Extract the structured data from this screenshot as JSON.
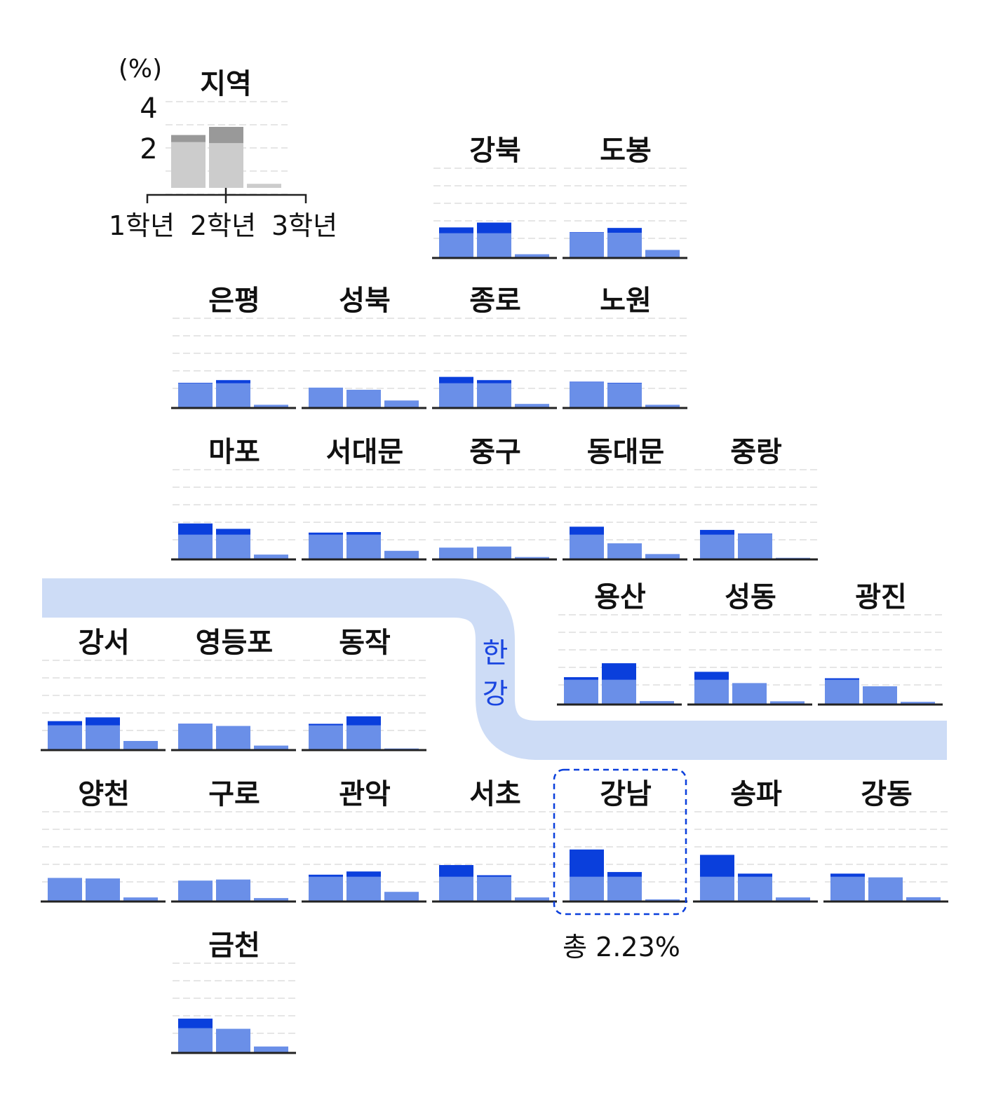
{
  "legend": {
    "unit_label": "(%)",
    "region_label": "지역",
    "ticks": [
      {
        "value": 4,
        "label": "4"
      },
      {
        "value": 2,
        "label": "2"
      }
    ],
    "grades": [
      "1학년",
      "2학년",
      "3학년"
    ],
    "sample_bars": [
      {
        "base": 2.25,
        "total": 2.6
      },
      {
        "base": 2.2,
        "total": 3.0
      },
      {
        "base": 0.2,
        "total": 0.2
      }
    ],
    "colors": {
      "base": "#cccccc",
      "top": "#999999"
    }
  },
  "river": {
    "label_chars": [
      "한",
      "강"
    ],
    "color": "#cddcf6",
    "text_color": "#1a46e0"
  },
  "highlight": {
    "district": "강남",
    "annotation": "총 2.23%"
  },
  "colors": {
    "base": "#6a8fe8",
    "top": "#0a3fdc",
    "axis": "#222222",
    "grid": "#e6e6e6",
    "text": "#111111"
  },
  "chart_data": {
    "type": "bar",
    "stacked": true,
    "categories": [
      "1학년",
      "2학년",
      "3학년"
    ],
    "ylabel": "(%)",
    "ylim": [
      0,
      5
    ],
    "yticks": [
      2,
      4
    ],
    "grid": true,
    "districts": [
      {
        "name": "강북",
        "col": 3,
        "row": 0,
        "values": [
          [
            2.3,
            2.85
          ],
          [
            2.3,
            3.3
          ],
          [
            0.35,
            0.35
          ]
        ]
      },
      {
        "name": "도봉",
        "col": 4,
        "row": 0,
        "values": [
          [
            2.35,
            2.4
          ],
          [
            2.35,
            2.8
          ],
          [
            0.75,
            0.75
          ]
        ]
      },
      {
        "name": "은평",
        "col": 1,
        "row": 1,
        "values": [
          [
            2.3,
            2.35
          ],
          [
            2.3,
            2.6
          ],
          [
            0.3,
            0.3
          ]
        ]
      },
      {
        "name": "성북",
        "col": 2,
        "row": 1,
        "values": [
          [
            1.9,
            1.9
          ],
          [
            1.7,
            1.7
          ],
          [
            0.7,
            0.7
          ]
        ]
      },
      {
        "name": "종로",
        "col": 3,
        "row": 1,
        "values": [
          [
            2.3,
            2.9
          ],
          [
            2.3,
            2.6
          ],
          [
            0.38,
            0.38
          ]
        ]
      },
      {
        "name": "노원",
        "col": 4,
        "row": 1,
        "values": [
          [
            2.4,
            2.45
          ],
          [
            2.3,
            2.35
          ],
          [
            0.3,
            0.3
          ]
        ]
      },
      {
        "name": "마포",
        "col": 1,
        "row": 2,
        "values": [
          [
            2.3,
            3.35
          ],
          [
            2.3,
            2.85
          ],
          [
            0.45,
            0.45
          ]
        ]
      },
      {
        "name": "서대문",
        "col": 2,
        "row": 2,
        "values": [
          [
            2.3,
            2.5
          ],
          [
            2.3,
            2.55
          ],
          [
            0.8,
            0.8
          ]
        ]
      },
      {
        "name": "중구",
        "col": 3,
        "row": 2,
        "values": [
          [
            1.1,
            1.1
          ],
          [
            1.2,
            1.2
          ],
          [
            0.22,
            0.22
          ]
        ]
      },
      {
        "name": "동대문",
        "col": 4,
        "row": 2,
        "values": [
          [
            2.3,
            3.05
          ],
          [
            1.5,
            1.5
          ],
          [
            0.5,
            0.5
          ]
        ]
      },
      {
        "name": "중랑",
        "col": 5,
        "row": 2,
        "values": [
          [
            2.3,
            2.75
          ],
          [
            2.35,
            2.4
          ],
          [
            0.15,
            0.15
          ]
        ]
      },
      {
        "name": "용산",
        "col": 4,
        "row": 3,
        "dx": -8,
        "values": [
          [
            2.3,
            2.55
          ],
          [
            2.3,
            3.85
          ],
          [
            0.32,
            0.32
          ]
        ]
      },
      {
        "name": "성동",
        "col": 5,
        "row": 3,
        "dx": -8,
        "values": [
          [
            2.3,
            3.05
          ],
          [
            2.0,
            2.0
          ],
          [
            0.3,
            0.3
          ]
        ]
      },
      {
        "name": "광진",
        "col": 6,
        "row": 3,
        "dx": -8,
        "values": [
          [
            2.3,
            2.45
          ],
          [
            1.7,
            1.7
          ],
          [
            0.25,
            0.25
          ]
        ]
      },
      {
        "name": "강서",
        "col": 0,
        "row": 4,
        "values": [
          [
            2.3,
            2.7
          ],
          [
            2.3,
            3.05
          ],
          [
            0.85,
            0.85
          ]
        ]
      },
      {
        "name": "영등포",
        "col": 1,
        "row": 4,
        "values": [
          [
            2.4,
            2.45
          ],
          [
            2.25,
            2.25
          ],
          [
            0.42,
            0.42
          ]
        ]
      },
      {
        "name": "동작",
        "col": 2,
        "row": 4,
        "values": [
          [
            2.3,
            2.45
          ],
          [
            2.3,
            3.15
          ],
          [
            0.15,
            0.15
          ]
        ]
      },
      {
        "name": "양천",
        "col": 0,
        "row": 5,
        "values": [
          [
            2.2,
            2.2
          ],
          [
            2.15,
            2.15
          ],
          [
            0.38,
            0.38
          ]
        ]
      },
      {
        "name": "구로",
        "col": 1,
        "row": 5,
        "values": [
          [
            1.95,
            1.95
          ],
          [
            2.05,
            2.05
          ],
          [
            0.32,
            0.32
          ]
        ]
      },
      {
        "name": "관악",
        "col": 2,
        "row": 5,
        "values": [
          [
            2.3,
            2.5
          ],
          [
            2.3,
            2.8
          ],
          [
            0.9,
            0.9
          ]
        ]
      },
      {
        "name": "서초",
        "col": 3,
        "row": 5,
        "values": [
          [
            2.3,
            3.4
          ],
          [
            2.3,
            2.45
          ],
          [
            0.38,
            0.38
          ]
        ]
      },
      {
        "name": "강남",
        "col": 4,
        "row": 5,
        "values": [
          [
            2.3,
            4.85
          ],
          [
            2.3,
            2.75
          ],
          [
            0.2,
            0.2
          ]
        ]
      },
      {
        "name": "송파",
        "col": 5,
        "row": 5,
        "values": [
          [
            2.3,
            4.35
          ],
          [
            2.3,
            2.6
          ],
          [
            0.38,
            0.38
          ]
        ]
      },
      {
        "name": "강동",
        "col": 6,
        "row": 5,
        "values": [
          [
            2.3,
            2.6
          ],
          [
            2.25,
            2.25
          ],
          [
            0.4,
            0.4
          ]
        ]
      },
      {
        "name": "금천",
        "col": 1,
        "row": 6,
        "values": [
          [
            2.3,
            3.2
          ],
          [
            2.25,
            2.25
          ],
          [
            0.6,
            0.6
          ]
        ]
      }
    ]
  }
}
